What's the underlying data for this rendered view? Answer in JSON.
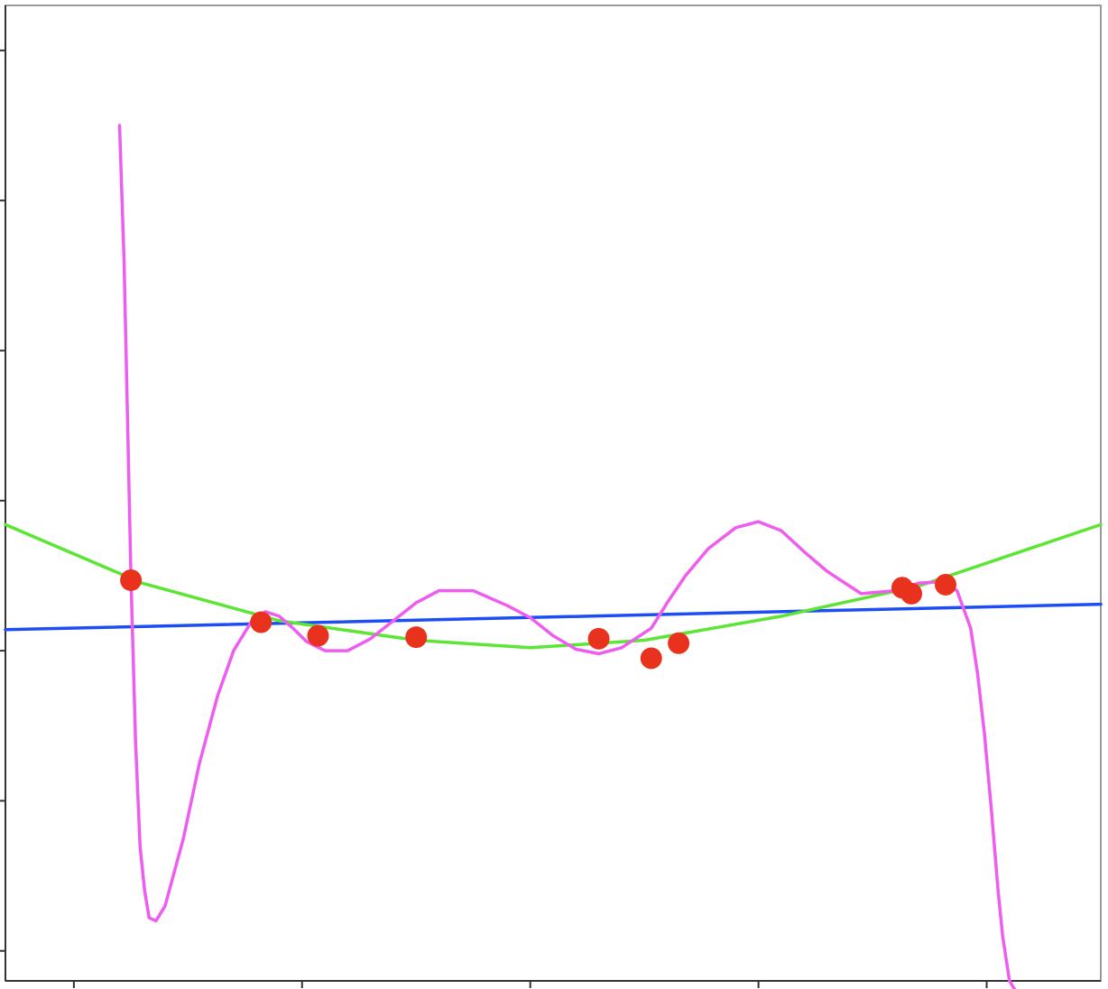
{
  "chart_data": {
    "type": "scatter",
    "title": "",
    "xlabel": "",
    "ylabel": "",
    "xlim": [
      -0.3,
      4.5
    ],
    "ylim": [
      -2.6,
      3.9
    ],
    "x_ticks": [
      0,
      1,
      2,
      3,
      4
    ],
    "y_ticks": [
      -2.4,
      -1.4,
      -0.4,
      0.6,
      1.6,
      2.6,
      3.6
    ],
    "grid": false,
    "legend": "none",
    "points": {
      "color": "#e8321e",
      "x": [
        0.25,
        0.82,
        1.07,
        1.5,
        2.3,
        2.53,
        2.65,
        3.63,
        3.67,
        3.82
      ],
      "y": [
        0.07,
        -0.21,
        -0.3,
        -0.31,
        -0.32,
        -0.45,
        -0.35,
        0.02,
        -0.02,
        0.04
      ]
    },
    "series": [
      {
        "kind": "linear-fit",
        "color": "#1d4ef5",
        "x": [
          -0.3,
          4.5
        ],
        "y": [
          -0.26,
          -0.09
        ]
      },
      {
        "kind": "quadratic-fit",
        "color": "#5ce534",
        "x": [
          -0.3,
          0.3,
          0.9,
          1.5,
          2.0,
          2.5,
          3.1,
          3.7,
          4.5
        ],
        "y": [
          0.44,
          0.05,
          -0.2,
          -0.33,
          -0.38,
          -0.33,
          -0.17,
          0.03,
          0.44
        ]
      },
      {
        "kind": "high-degree-fit",
        "color": "#ee5cf0",
        "x": [
          0.2,
          0.22,
          0.25,
          0.27,
          0.29,
          0.31,
          0.33,
          0.36,
          0.4,
          0.48,
          0.55,
          0.63,
          0.7,
          0.78,
          0.84,
          0.9,
          0.96,
          1.02,
          1.1,
          1.2,
          1.3,
          1.4,
          1.5,
          1.6,
          1.75,
          1.9,
          2.0,
          2.1,
          2.2,
          2.3,
          2.4,
          2.53,
          2.6,
          2.68,
          2.78,
          2.9,
          3.0,
          3.1,
          3.2,
          3.3,
          3.45,
          3.6,
          3.7,
          3.8,
          3.87,
          3.93,
          3.96,
          3.99,
          4.02,
          4.05,
          4.07,
          4.1,
          4.14
        ],
        "y": [
          3.1,
          2.2,
          0.1,
          -1.0,
          -1.7,
          -2.0,
          -2.18,
          -2.2,
          -2.1,
          -1.65,
          -1.15,
          -0.7,
          -0.4,
          -0.2,
          -0.14,
          -0.17,
          -0.25,
          -0.34,
          -0.4,
          -0.4,
          -0.32,
          -0.2,
          -0.08,
          0.0,
          0.0,
          -0.1,
          -0.18,
          -0.3,
          -0.39,
          -0.42,
          -0.38,
          -0.25,
          -0.08,
          0.1,
          0.28,
          0.42,
          0.46,
          0.4,
          0.26,
          0.13,
          -0.02,
          0.0,
          0.05,
          0.06,
          0.0,
          -0.25,
          -0.55,
          -0.95,
          -1.45,
          -2.0,
          -2.3,
          -2.6,
          -2.7
        ]
      }
    ]
  }
}
